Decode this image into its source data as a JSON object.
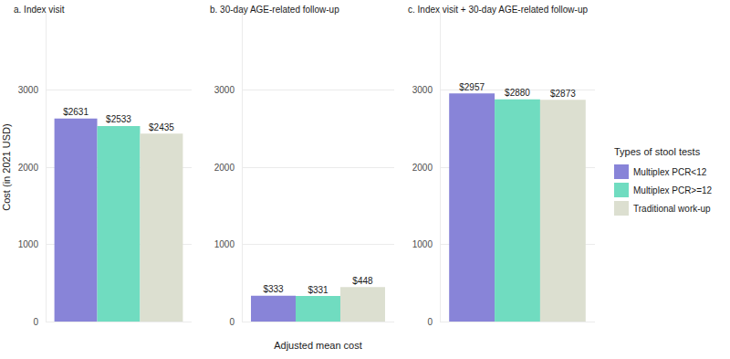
{
  "chart_data": [
    {
      "type": "bar",
      "title": "a. Index visit",
      "y_label": "Cost (in 2021 USD)",
      "categories": [
        null
      ],
      "series": [
        {
          "name": "Multiplex PCR<12",
          "color": "#8884d8",
          "values": [
            2631
          ],
          "value_labels": [
            "$2631"
          ]
        },
        {
          "name": "Multiplex PCR>=12",
          "color": "#70dcc0",
          "values": [
            2533
          ],
          "value_labels": [
            "$2533"
          ]
        },
        {
          "name": "Traditional work-up",
          "color": "#dcdfd0",
          "values": [
            2435
          ],
          "value_labels": [
            "$2435"
          ]
        }
      ],
      "ylim": [
        0,
        4000
      ],
      "yticks": [
        0,
        1000,
        2000,
        3000
      ],
      "grid": true,
      "data_labels": true,
      "tick_labels": "y"
    },
    {
      "type": "bar",
      "title": "b. 30-day AGE-related follow-up",
      "x_label": "Adjusted mean cost",
      "categories": [
        null
      ],
      "series": [
        {
          "name": "Multiplex PCR<12",
          "color": "#8884d8",
          "values": [
            333
          ],
          "value_labels": [
            "$333"
          ]
        },
        {
          "name": "Multiplex PCR>=12",
          "color": "#70dcc0",
          "values": [
            331
          ],
          "value_labels": [
            "$331"
          ]
        },
        {
          "name": "Traditional work-up",
          "color": "#dcdfd0",
          "values": [
            448
          ],
          "value_labels": [
            "$448"
          ]
        }
      ],
      "ylim": [
        0,
        4000
      ],
      "yticks": [
        0,
        1000,
        2000,
        3000
      ],
      "grid": true,
      "data_labels": true,
      "tick_labels": "y"
    },
    {
      "type": "bar",
      "title": "c. Index visit + 30-day AGE-related follow-up",
      "legend_title": "Types of stool tests",
      "legend": "right",
      "categories": [
        null
      ],
      "series": [
        {
          "name": "Multiplex PCR<12",
          "color": "#8884d8",
          "values": [
            2957
          ],
          "value_labels": [
            "$2957"
          ]
        },
        {
          "name": "Multiplex PCR>=12",
          "color": "#70dcc0",
          "values": [
            2880
          ],
          "value_labels": [
            "$2880"
          ]
        },
        {
          "name": "Traditional work-up",
          "color": "#dcdfd0",
          "values": [
            2873
          ],
          "value_labels": [
            "$2873"
          ]
        }
      ],
      "ylim": [
        0,
        4000
      ],
      "yticks": [
        0,
        1000,
        2000,
        3000
      ],
      "grid": true,
      "data_labels": true,
      "tick_labels": "y"
    }
  ]
}
